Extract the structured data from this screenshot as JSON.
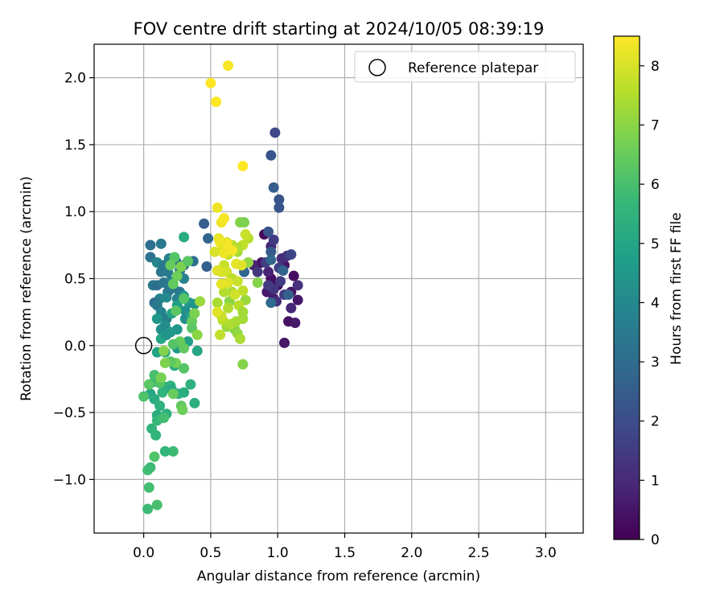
{
  "chart_data": {
    "type": "scatter",
    "title": "FOV centre drift starting at 2024/10/05 08:39:19",
    "xlabel": "Angular distance from reference (arcmin)",
    "ylabel": "Rotation from reference (arcmin)",
    "xlim": [
      -0.37,
      3.28
    ],
    "ylim": [
      -1.4,
      2.25
    ],
    "xticks": [
      0.0,
      0.5,
      1.0,
      1.5,
      2.0,
      2.5,
      3.0
    ],
    "xtick_labels": [
      "0.0",
      "0.5",
      "1.0",
      "1.5",
      "2.0",
      "2.5",
      "3.0"
    ],
    "yticks": [
      -1.0,
      -0.5,
      0.0,
      0.5,
      1.0,
      1.5,
      2.0
    ],
    "ytick_labels": [
      "−1.0",
      "−0.5",
      "0.0",
      "0.5",
      "1.0",
      "1.5",
      "2.0"
    ],
    "grid": true,
    "legend": {
      "position": "top-right",
      "label": "Reference platepar"
    },
    "reference_point": {
      "x": 0.0,
      "y": 0.0
    },
    "colorbar": {
      "label": "Hours from first FF file",
      "min": 0,
      "max": 8.5,
      "ticks": [
        0,
        1,
        2,
        3,
        4,
        5,
        6,
        7,
        8
      ],
      "colormap": "viridis"
    },
    "colors": {
      "viridis": [
        "#440154",
        "#482878",
        "#3e4989",
        "#31688e",
        "#26828e",
        "#1f9e89",
        "#35b779",
        "#6ece58",
        "#b5de2b",
        "#fde725"
      ],
      "grid": "#b0b0b0"
    },
    "points": [
      [
        0.9,
        0.83,
        0.2
      ],
      [
        0.88,
        0.62,
        0.3
      ],
      [
        0.95,
        0.5,
        0.3
      ],
      [
        1.0,
        0.45,
        0.4
      ],
      [
        1.05,
        0.6,
        0.5
      ],
      [
        0.92,
        0.4,
        0.6
      ],
      [
        0.97,
        0.35,
        0.6
      ],
      [
        1.1,
        0.4,
        0.4
      ],
      [
        1.12,
        0.52,
        0.3
      ],
      [
        1.08,
        0.18,
        0.4
      ],
      [
        1.13,
        0.17,
        0.6
      ],
      [
        1.05,
        0.02,
        0.5
      ],
      [
        1.15,
        0.34,
        0.5
      ],
      [
        1.1,
        0.28,
        0.9
      ],
      [
        0.93,
        0.55,
        0.9
      ],
      [
        1.03,
        0.65,
        1.1
      ],
      [
        1.07,
        0.67,
        1.2
      ],
      [
        0.95,
        0.74,
        0.9
      ],
      [
        0.82,
        0.6,
        0.8
      ],
      [
        0.85,
        0.55,
        1.4
      ],
      [
        0.97,
        0.42,
        1.3
      ],
      [
        0.99,
        0.33,
        1.2
      ],
      [
        1.02,
        0.48,
        1.5
      ],
      [
        1.05,
        0.38,
        1.5
      ],
      [
        1.15,
        0.45,
        1.2
      ],
      [
        1.1,
        0.68,
        1.8
      ],
      [
        1.01,
        0.58,
        1.6
      ],
      [
        0.93,
        0.45,
        1.5
      ],
      [
        0.91,
        0.62,
        1.6
      ],
      [
        0.97,
        0.79,
        1.5
      ],
      [
        0.93,
        0.85,
        2.2
      ],
      [
        0.95,
        0.7,
        2.4
      ],
      [
        0.98,
        1.59,
        1.9
      ],
      [
        0.95,
        1.42,
        2.3
      ],
      [
        0.97,
        1.18,
        2.5
      ],
      [
        1.01,
        1.09,
        2.2
      ],
      [
        1.01,
        1.03,
        2.3
      ],
      [
        0.95,
        0.64,
        2.8
      ],
      [
        1.04,
        0.56,
        2.7
      ],
      [
        1.08,
        0.38,
        2.6
      ],
      [
        0.95,
        0.32,
        2.9
      ],
      [
        0.75,
        0.55,
        2.8
      ],
      [
        0.45,
        0.91,
        2.5
      ],
      [
        0.48,
        0.8,
        2.8
      ],
      [
        0.47,
        0.59,
        2.6
      ],
      [
        0.37,
        0.63,
        3.1
      ],
      [
        0.33,
        0.63,
        3.4
      ],
      [
        0.3,
        0.6,
        2.8
      ],
      [
        0.24,
        0.63,
        3.2
      ],
      [
        0.2,
        0.48,
        3.6
      ],
      [
        0.18,
        0.4,
        3.3
      ],
      [
        0.12,
        0.35,
        3.8
      ],
      [
        0.08,
        0.32,
        3.0
      ],
      [
        0.05,
        0.75,
        3.1
      ],
      [
        0.13,
        0.76,
        3.5
      ],
      [
        0.05,
        0.66,
        3.2
      ],
      [
        0.1,
        0.62,
        3.9
      ],
      [
        0.15,
        0.6,
        3.4
      ],
      [
        0.19,
        0.65,
        3.7
      ],
      [
        0.13,
        0.55,
        3.3
      ],
      [
        0.18,
        0.55,
        3.5
      ],
      [
        0.27,
        0.56,
        3.6
      ],
      [
        0.3,
        0.5,
        3.8
      ],
      [
        0.22,
        0.44,
        4.2
      ],
      [
        0.27,
        0.4,
        3.3
      ],
      [
        0.17,
        0.36,
        4.0
      ],
      [
        0.1,
        0.3,
        3.5
      ],
      [
        0.13,
        0.25,
        3.8
      ],
      [
        0.17,
        0.2,
        3.6
      ],
      [
        0.07,
        0.45,
        3.4
      ],
      [
        0.1,
        0.45,
        3.1
      ],
      [
        0.15,
        0.47,
        3.3
      ],
      [
        0.2,
        0.42,
        3.5
      ],
      [
        0.25,
        0.35,
        3.7
      ],
      [
        0.31,
        0.26,
        4.3
      ],
      [
        0.34,
        0.32,
        4.5
      ],
      [
        0.38,
        0.31,
        4.4
      ],
      [
        0.3,
        0.37,
        4.6
      ],
      [
        0.25,
        0.3,
        4.8
      ],
      [
        0.21,
        0.24,
        4.9
      ],
      [
        0.1,
        0.2,
        4.5
      ],
      [
        0.13,
        0.12,
        4.3
      ],
      [
        0.16,
        0.15,
        4.1
      ],
      [
        0.2,
        0.1,
        4.7
      ],
      [
        0.25,
        0.12,
        4.5
      ],
      [
        0.31,
        0.2,
        4.2
      ],
      [
        0.33,
        0.03,
        4.8
      ],
      [
        0.25,
        -0.02,
        4.6
      ],
      [
        0.1,
        -0.05,
        4.9
      ],
      [
        0.13,
        0.05,
        5.0
      ],
      [
        0.17,
        0.08,
        4.4
      ],
      [
        0.3,
        0.81,
        5.2
      ],
      [
        0.36,
        0.22,
        5.1
      ],
      [
        0.4,
        -0.04,
        5.0
      ],
      [
        0.23,
        -0.15,
        5.3
      ],
      [
        0.16,
        -0.05,
        5.1
      ],
      [
        0.08,
        -0.27,
        5.2
      ],
      [
        0.12,
        -0.28,
        5.0
      ],
      [
        0.16,
        -0.31,
        5.3
      ],
      [
        0.2,
        -0.3,
        5.5
      ],
      [
        0.21,
        -0.33,
        5.1
      ],
      [
        0.26,
        -0.36,
        5.4
      ],
      [
        0.3,
        -0.35,
        5.3
      ],
      [
        0.35,
        -0.29,
        5.4
      ],
      [
        0.38,
        -0.43,
        5.3
      ],
      [
        0.05,
        -0.36,
        5.0
      ],
      [
        0.08,
        -0.4,
        5.2
      ],
      [
        0.12,
        -0.45,
        5.4
      ],
      [
        0.1,
        -0.52,
        5.3
      ],
      [
        0.17,
        -0.51,
        5.4
      ],
      [
        0.14,
        -0.35,
        5.5
      ],
      [
        0.06,
        -0.62,
        5.5
      ],
      [
        0.09,
        -0.67,
        5.6
      ],
      [
        0.1,
        -0.56,
        5.7
      ],
      [
        0.15,
        -0.54,
        5.9
      ],
      [
        0.22,
        -0.79,
        5.8
      ],
      [
        0.16,
        -0.79,
        5.6
      ],
      [
        0.03,
        -0.93,
        5.9
      ],
      [
        0.05,
        -0.91,
        5.8
      ],
      [
        0.04,
        -1.06,
        5.9
      ],
      [
        0.1,
        -1.19,
        6.0
      ],
      [
        0.03,
        -1.22,
        5.8
      ],
      [
        0.08,
        -0.83,
        6.1
      ],
      [
        0.0,
        -0.38,
        6.1
      ],
      [
        0.04,
        -0.29,
        6.3
      ],
      [
        0.08,
        -0.22,
        6.0
      ],
      [
        0.12,
        -0.28,
        6.2
      ],
      [
        0.22,
        -0.36,
        6.5
      ],
      [
        0.28,
        -0.45,
        6.4
      ],
      [
        0.29,
        -0.48,
        6.6
      ],
      [
        0.23,
        0.66,
        6.2
      ],
      [
        0.2,
        0.6,
        6.5
      ],
      [
        0.28,
        0.59,
        6.8
      ],
      [
        0.33,
        0.63,
        6.3
      ],
      [
        0.25,
        0.52,
        6.6
      ],
      [
        0.22,
        0.46,
        6.4
      ],
      [
        0.3,
        0.35,
        6.2
      ],
      [
        0.24,
        0.26,
        6.3
      ],
      [
        0.36,
        0.18,
        6.5
      ],
      [
        0.38,
        0.24,
        6.8
      ],
      [
        0.36,
        0.13,
        6.3
      ],
      [
        0.27,
        0.03,
        6.5
      ],
      [
        0.22,
        0.01,
        6.2
      ],
      [
        0.3,
        -0.02,
        6.4
      ],
      [
        0.24,
        -0.13,
        6.7
      ],
      [
        0.2,
        -0.12,
        6.3
      ],
      [
        0.3,
        -0.17,
        6.2
      ],
      [
        0.16,
        -0.13,
        6.8
      ],
      [
        0.15,
        -0.04,
        6.9
      ],
      [
        0.13,
        -0.24,
        6.7
      ],
      [
        0.42,
        0.33,
        7.2
      ],
      [
        0.4,
        0.08,
        7.0
      ],
      [
        0.72,
        0.92,
        6.9
      ],
      [
        0.75,
        0.92,
        6.8
      ],
      [
        0.7,
        0.7,
        7.3
      ],
      [
        0.78,
        0.62,
        7.1
      ],
      [
        0.66,
        0.4,
        7.4
      ],
      [
        0.64,
        0.33,
        7.0
      ],
      [
        0.62,
        0.14,
        7.2
      ],
      [
        0.68,
        0.12,
        6.9
      ],
      [
        0.7,
        0.09,
        7.1
      ],
      [
        0.72,
        0.05,
        7.4
      ],
      [
        0.74,
        0.2,
        7.3
      ],
      [
        0.76,
        0.34,
        7.2
      ],
      [
        0.74,
        -0.14,
        6.9
      ],
      [
        0.85,
        0.47,
        6.9
      ],
      [
        0.78,
        0.8,
        7.6
      ],
      [
        0.76,
        0.83,
        7.8
      ],
      [
        0.74,
        0.75,
        7.7
      ],
      [
        0.7,
        0.73,
        7.5
      ],
      [
        0.66,
        0.75,
        7.6
      ],
      [
        0.63,
        0.68,
        7.7
      ],
      [
        0.6,
        0.6,
        7.8
      ],
      [
        0.62,
        0.55,
        7.9
      ],
      [
        0.66,
        0.5,
        7.6
      ],
      [
        0.7,
        0.48,
        7.8
      ],
      [
        0.74,
        0.41,
        7.7
      ],
      [
        0.68,
        0.38,
        7.9
      ],
      [
        0.63,
        0.28,
        7.5
      ],
      [
        0.59,
        0.19,
        7.6
      ],
      [
        0.58,
        0.22,
        7.8
      ],
      [
        0.55,
        0.32,
        7.4
      ],
      [
        0.6,
        0.4,
        7.5
      ],
      [
        0.71,
        0.3,
        7.6
      ],
      [
        0.74,
        0.25,
        7.3
      ],
      [
        0.57,
        0.08,
        7.7
      ],
      [
        0.65,
        0.16,
        7.5
      ],
      [
        0.69,
        0.18,
        7.4
      ],
      [
        0.58,
        0.55,
        8.0
      ],
      [
        0.55,
        0.56,
        8.1
      ],
      [
        0.63,
        0.47,
        8.1
      ],
      [
        0.58,
        0.46,
        8.2
      ],
      [
        0.62,
        0.77,
        8.0
      ],
      [
        0.59,
        0.73,
        8.1
      ],
      [
        0.56,
        0.8,
        8.2
      ],
      [
        0.53,
        0.7,
        8.0
      ],
      [
        0.6,
        0.69,
        8.3
      ],
      [
        0.66,
        0.71,
        8.4
      ],
      [
        0.69,
        0.61,
        8.2
      ],
      [
        0.73,
        0.6,
        8.1
      ],
      [
        0.55,
        0.25,
        8.1
      ],
      [
        0.58,
        0.92,
        8.3
      ],
      [
        0.6,
        0.95,
        8.4
      ],
      [
        0.55,
        1.03,
        8.3
      ],
      [
        0.74,
        1.34,
        8.5
      ],
      [
        0.5,
        1.96,
        8.5
      ],
      [
        0.54,
        1.82,
        8.5
      ],
      [
        0.63,
        2.09,
        8.4
      ],
      [
        0.62,
        0.76,
        8.4
      ],
      [
        0.57,
        0.77,
        8.3
      ]
    ]
  }
}
